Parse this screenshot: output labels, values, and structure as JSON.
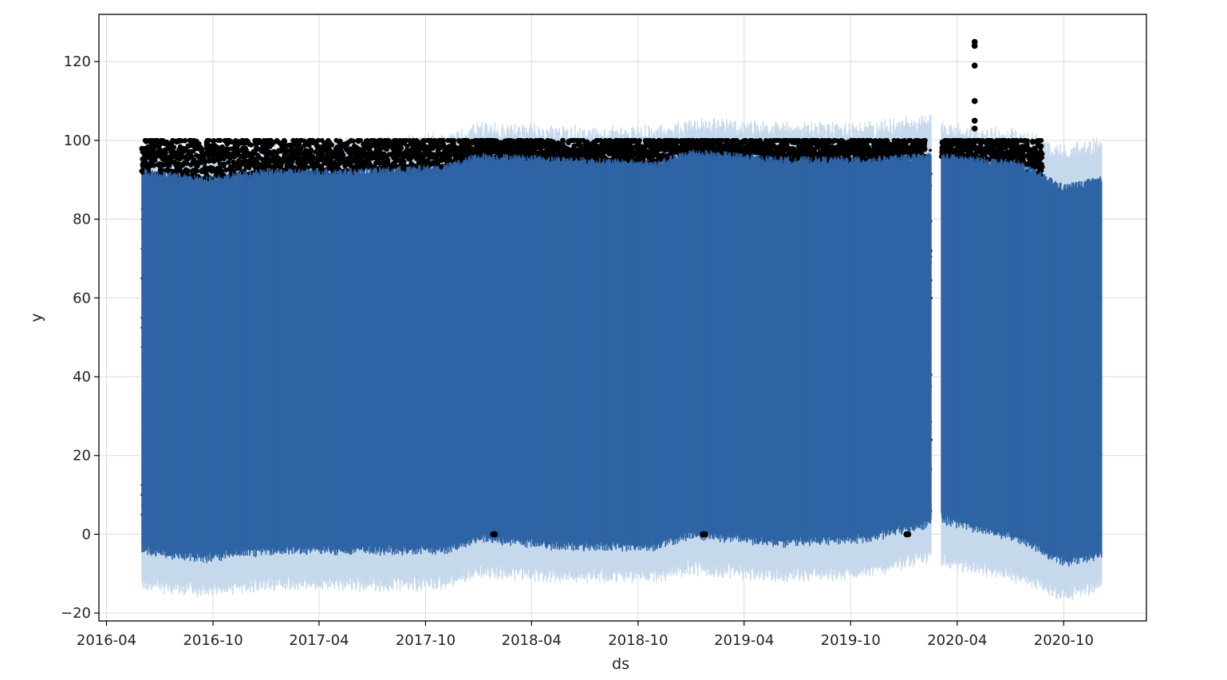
{
  "chart_data": {
    "type": "scatter",
    "title": "",
    "xlabel": "ds",
    "ylabel": "y",
    "xlim": [
      "2016-03-19",
      "2021-02-20"
    ],
    "ylim": [
      -22,
      132
    ],
    "x_ticks": [
      "2016-04",
      "2016-10",
      "2017-04",
      "2017-10",
      "2018-04",
      "2018-10",
      "2019-04",
      "2019-10",
      "2020-04",
      "2020-10"
    ],
    "y_ticks": [
      -20,
      0,
      20,
      40,
      60,
      80,
      100,
      120
    ],
    "grid": true,
    "legend": "none",
    "colors": {
      "observed": "#000000",
      "forecast": "#2e64a5",
      "interval": "#c6d9ec",
      "grid": "#dcdcdc",
      "axes": "#000000"
    },
    "series": [
      {
        "role": "forecast_band",
        "x": [
          "2016-06-01",
          "2016-09-15",
          "2017-01-01",
          "2017-06-01",
          "2017-11-01",
          "2018-01-01",
          "2018-06-01",
          "2018-11-01",
          "2019-01-01",
          "2019-06-01",
          "2019-11-01",
          "2020-02-15",
          "2020-03-01",
          "2020-07-15",
          "2020-10-01",
          "2020-12-05"
        ],
        "yhat_upper": [
          92,
          90,
          92,
          92,
          93,
          96,
          95,
          94,
          97,
          95,
          95,
          96,
          96,
          94,
          88,
          90
        ],
        "yhat_lower": [
          -3,
          -5,
          -3,
          -3,
          -3,
          0,
          -2,
          -2,
          1,
          -1,
          0,
          4,
          5,
          0,
          -6,
          -4
        ],
        "interval_upper": [
          95,
          94,
          96,
          97,
          98,
          101,
          100,
          100,
          102,
          101,
          101,
          103,
          101,
          99,
          95,
          97
        ],
        "interval_lower": [
          -11,
          -13,
          -11,
          -11,
          -11,
          -8,
          -9,
          -9,
          -7,
          -9,
          -8,
          -4,
          -5,
          -9,
          -14,
          -11
        ]
      },
      {
        "role": "observed_outliers",
        "x": [
          "2018-01-25",
          "2018-01-28",
          "2019-01-20",
          "2019-01-24",
          "2020-01-05",
          "2020-01-08",
          "2020-05-01",
          "2020-05-01",
          "2020-05-01",
          "2020-05-01",
          "2020-05-01",
          "2020-05-01"
        ],
        "y": [
          0,
          0,
          0,
          0,
          0,
          0,
          125,
          124,
          119,
          110,
          105,
          103
        ]
      }
    ]
  }
}
